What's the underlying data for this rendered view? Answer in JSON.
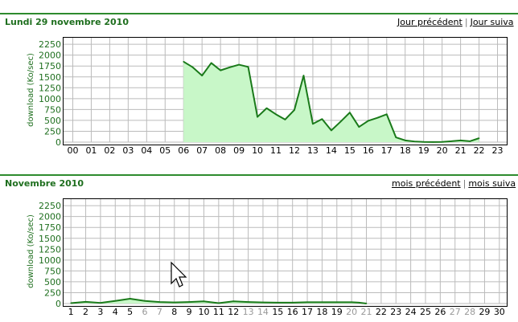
{
  "day_section": {
    "title": "Lundi 29 novembre 2010",
    "prev_link": "Jour précédent",
    "separator": "|",
    "next_link": "Jour suiva"
  },
  "month_section": {
    "title": "Novembre 2010",
    "prev_link": "mois précédent",
    "separator": "|",
    "next_link": "mois suiva"
  },
  "colors": {
    "line": "#1a7a1a",
    "fill": "#c8f7c8",
    "grid": "#bbbbbb",
    "axis_text": "#1f6f1f",
    "weekend_text": "#999999"
  },
  "chart_data": [
    {
      "type": "area",
      "ylabel": "download (Ko/sec)",
      "ylim": [
        0,
        2400
      ],
      "yticks": [
        0,
        250,
        500,
        750,
        1000,
        1250,
        1500,
        1750,
        2000,
        2250
      ],
      "xticks": [
        "00",
        "01",
        "02",
        "03",
        "04",
        "05",
        "06",
        "07",
        "08",
        "09",
        "10",
        "11",
        "12",
        "13",
        "14",
        "15",
        "16",
        "17",
        "18",
        "19",
        "20",
        "21",
        "22",
        "23"
      ],
      "grid": true,
      "series": [
        {
          "x": [
            6,
            6.5,
            7,
            7.5,
            8,
            8.5,
            9,
            9.5,
            10,
            10.5,
            11,
            11.5,
            12,
            12.5,
            13,
            13.5,
            14,
            14.5,
            15,
            15.5,
            16,
            16.5,
            17,
            17.5,
            18,
            18.5,
            19,
            19.5,
            20,
            20.5,
            21,
            21.5,
            22
          ],
          "y": [
            1850,
            1720,
            1530,
            1820,
            1650,
            1720,
            1780,
            1730,
            580,
            780,
            640,
            520,
            740,
            1530,
            420,
            530,
            270,
            470,
            680,
            350,
            490,
            560,
            640,
            110,
            40,
            15,
            5,
            3,
            5,
            20,
            40,
            20,
            90
          ]
        }
      ]
    },
    {
      "type": "area",
      "ylabel": "download (Ko/sec)",
      "ylim": [
        0,
        2400
      ],
      "yticks": [
        0,
        250,
        500,
        750,
        1000,
        1250,
        1500,
        1750,
        2000,
        2250
      ],
      "xticks": [
        "1",
        "2",
        "3",
        "4",
        "5",
        "6",
        "7",
        "8",
        "9",
        "10",
        "11",
        "12",
        "13",
        "14",
        "15",
        "16",
        "17",
        "18",
        "19",
        "20",
        "21",
        "22",
        "23",
        "24",
        "25",
        "26",
        "27",
        "28",
        "29",
        "30"
      ],
      "weekend_ticks": [
        "6",
        "7",
        "13",
        "14",
        "20",
        "21",
        "27",
        "28"
      ],
      "grid": true,
      "series": [
        {
          "x": [
            1,
            2,
            3,
            4,
            5,
            6,
            7,
            8,
            9,
            10,
            11,
            12,
            13,
            14,
            15,
            16,
            17,
            18,
            19,
            20,
            20.5,
            21
          ],
          "y": [
            10,
            40,
            15,
            60,
            110,
            60,
            35,
            25,
            35,
            50,
            10,
            50,
            35,
            25,
            20,
            20,
            30,
            30,
            30,
            30,
            20,
            0
          ]
        }
      ]
    }
  ]
}
